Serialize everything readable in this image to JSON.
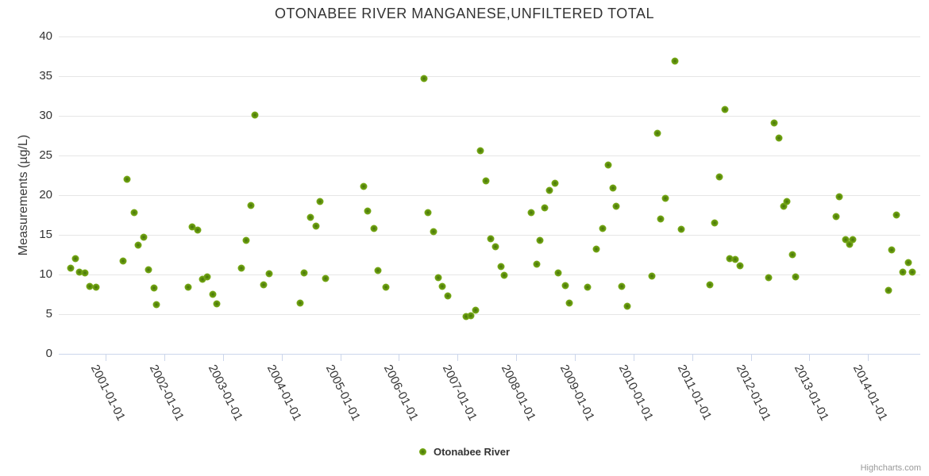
{
  "chart": {
    "title": "OTONABEE RIVER MANGANESE,UNFILTERED TOTAL",
    "credit": "Highcharts.com"
  },
  "legend": {
    "series_label": "Otonabee River",
    "marker_icon": "green-dot"
  },
  "colors": {
    "point_outer": "#84b71d",
    "point_core": "#44700a",
    "grid": "#e6e6e6",
    "axis_line": "#ccd6eb",
    "label_text": "#333333",
    "credit_text": "#999999"
  },
  "chart_data": {
    "type": "scatter",
    "title": "OTONABEE RIVER MANGANESE,UNFILTERED TOTAL",
    "xlabel": "",
    "ylabel": "Measurements (µg/L)",
    "ylim": [
      0,
      40
    ],
    "y_ticks": [
      0,
      5,
      10,
      15,
      20,
      25,
      30,
      35,
      40
    ],
    "x_tick_labels": [
      "2001-01-01",
      "2002-01-01",
      "2003-01-01",
      "2004-01-01",
      "2005-01-01",
      "2006-01-01",
      "2007-01-01",
      "2008-01-01",
      "2009-01-01",
      "2010-01-01",
      "2011-01-01",
      "2012-01-01",
      "2013-01-01",
      "2014-01-01"
    ],
    "x_range_decimal_years": [
      2000.2,
      2014.89
    ],
    "grid": "horizontal-only",
    "legend_position": "bottom-center",
    "point_encoding": {
      "t": "decimal year",
      "v": "manganese µg/L"
    },
    "series": [
      {
        "name": "Otonabee River",
        "points": [
          {
            "t": 2000.4,
            "v": 10.8
          },
          {
            "t": 2000.48,
            "v": 12.0
          },
          {
            "t": 2000.55,
            "v": 10.3
          },
          {
            "t": 2000.65,
            "v": 10.2
          },
          {
            "t": 2000.73,
            "v": 8.5
          },
          {
            "t": 2000.83,
            "v": 8.4
          },
          {
            "t": 2001.3,
            "v": 11.7
          },
          {
            "t": 2001.37,
            "v": 22.0
          },
          {
            "t": 2001.48,
            "v": 17.8
          },
          {
            "t": 2001.56,
            "v": 13.7
          },
          {
            "t": 2001.65,
            "v": 14.7
          },
          {
            "t": 2001.73,
            "v": 10.6
          },
          {
            "t": 2001.82,
            "v": 8.3
          },
          {
            "t": 2001.87,
            "v": 6.2
          },
          {
            "t": 2002.41,
            "v": 8.4
          },
          {
            "t": 2002.47,
            "v": 16.0
          },
          {
            "t": 2002.57,
            "v": 15.6
          },
          {
            "t": 2002.65,
            "v": 9.4
          },
          {
            "t": 2002.73,
            "v": 9.7
          },
          {
            "t": 2002.83,
            "v": 7.5
          },
          {
            "t": 2002.89,
            "v": 6.3
          },
          {
            "t": 2003.32,
            "v": 10.8
          },
          {
            "t": 2003.4,
            "v": 14.3
          },
          {
            "t": 2003.48,
            "v": 18.7
          },
          {
            "t": 2003.55,
            "v": 30.1
          },
          {
            "t": 2003.69,
            "v": 8.7
          },
          {
            "t": 2003.79,
            "v": 10.1
          },
          {
            "t": 2004.32,
            "v": 6.4
          },
          {
            "t": 2004.38,
            "v": 10.2
          },
          {
            "t": 2004.49,
            "v": 17.2
          },
          {
            "t": 2004.58,
            "v": 16.1
          },
          {
            "t": 2004.66,
            "v": 19.2
          },
          {
            "t": 2004.75,
            "v": 9.5
          },
          {
            "t": 2005.4,
            "v": 21.1
          },
          {
            "t": 2005.47,
            "v": 18.0
          },
          {
            "t": 2005.57,
            "v": 15.8
          },
          {
            "t": 2005.64,
            "v": 10.5
          },
          {
            "t": 2005.78,
            "v": 8.4
          },
          {
            "t": 2006.43,
            "v": 34.7
          },
          {
            "t": 2006.5,
            "v": 17.8
          },
          {
            "t": 2006.59,
            "v": 15.4
          },
          {
            "t": 2006.67,
            "v": 9.6
          },
          {
            "t": 2006.74,
            "v": 8.5
          },
          {
            "t": 2006.84,
            "v": 7.3
          },
          {
            "t": 2007.14,
            "v": 4.7
          },
          {
            "t": 2007.23,
            "v": 4.8
          },
          {
            "t": 2007.31,
            "v": 5.5
          },
          {
            "t": 2007.39,
            "v": 25.6
          },
          {
            "t": 2007.48,
            "v": 21.8
          },
          {
            "t": 2007.56,
            "v": 14.5
          },
          {
            "t": 2007.64,
            "v": 13.5
          },
          {
            "t": 2007.74,
            "v": 11.0
          },
          {
            "t": 2007.8,
            "v": 9.9
          },
          {
            "t": 2008.25,
            "v": 17.8
          },
          {
            "t": 2008.35,
            "v": 11.3
          },
          {
            "t": 2008.4,
            "v": 14.3
          },
          {
            "t": 2008.49,
            "v": 18.4
          },
          {
            "t": 2008.57,
            "v": 20.6
          },
          {
            "t": 2008.66,
            "v": 21.5
          },
          {
            "t": 2008.72,
            "v": 10.2
          },
          {
            "t": 2008.84,
            "v": 8.6
          },
          {
            "t": 2008.9,
            "v": 6.4
          },
          {
            "t": 2009.22,
            "v": 8.4
          },
          {
            "t": 2009.37,
            "v": 13.2
          },
          {
            "t": 2009.47,
            "v": 15.8
          },
          {
            "t": 2009.57,
            "v": 23.8
          },
          {
            "t": 2009.65,
            "v": 20.9
          },
          {
            "t": 2009.7,
            "v": 18.6
          },
          {
            "t": 2009.8,
            "v": 8.5
          },
          {
            "t": 2009.9,
            "v": 6.0
          },
          {
            "t": 2010.32,
            "v": 9.8
          },
          {
            "t": 2010.41,
            "v": 27.8
          },
          {
            "t": 2010.46,
            "v": 17.0
          },
          {
            "t": 2010.54,
            "v": 19.6
          },
          {
            "t": 2010.7,
            "v": 36.9
          },
          {
            "t": 2010.81,
            "v": 15.7
          },
          {
            "t": 2011.3,
            "v": 8.7
          },
          {
            "t": 2011.38,
            "v": 16.5
          },
          {
            "t": 2011.47,
            "v": 22.3
          },
          {
            "t": 2011.56,
            "v": 30.8
          },
          {
            "t": 2011.64,
            "v": 12.0
          },
          {
            "t": 2011.73,
            "v": 11.9
          },
          {
            "t": 2011.81,
            "v": 11.1
          },
          {
            "t": 2012.31,
            "v": 9.6
          },
          {
            "t": 2012.4,
            "v": 29.1
          },
          {
            "t": 2012.48,
            "v": 27.2
          },
          {
            "t": 2012.56,
            "v": 18.6
          },
          {
            "t": 2012.61,
            "v": 19.2
          },
          {
            "t": 2012.71,
            "v": 12.5
          },
          {
            "t": 2012.77,
            "v": 9.7
          },
          {
            "t": 2013.45,
            "v": 17.3
          },
          {
            "t": 2013.51,
            "v": 19.8
          },
          {
            "t": 2013.62,
            "v": 14.4
          },
          {
            "t": 2013.68,
            "v": 13.8
          },
          {
            "t": 2013.74,
            "v": 14.4
          },
          {
            "t": 2014.35,
            "v": 8.0
          },
          {
            "t": 2014.4,
            "v": 13.1
          },
          {
            "t": 2014.48,
            "v": 17.5
          },
          {
            "t": 2014.59,
            "v": 10.3
          },
          {
            "t": 2014.69,
            "v": 11.5
          },
          {
            "t": 2014.76,
            "v": 10.3
          }
        ]
      }
    ]
  }
}
